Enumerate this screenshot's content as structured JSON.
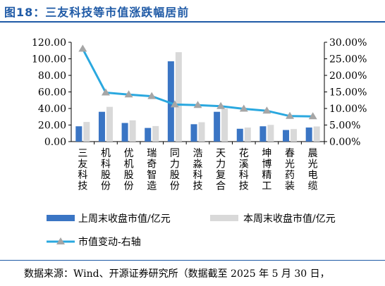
{
  "title": "图18：三友科技等市值涨跌幅居前",
  "source": "数据来源：Wind、开源证券研究所（数据截至 2025 年 5 月 30 日，",
  "colors": {
    "prev": "#3a75c4",
    "curr": "#d9d9d9",
    "line": "#2aa8df",
    "marker": "#a6a6a6",
    "title": "#1f5aa6"
  },
  "chart_data": {
    "type": "bar",
    "categories": [
      "三友科技",
      "机科股份",
      "优机股份",
      "瑞奇智造",
      "同力股份",
      "浩淼科技",
      "天力复合",
      "花溪科技",
      "坤博精工",
      "春光药装",
      "晨光电缆"
    ],
    "series": [
      {
        "name": "上周末收盘市值/亿元",
        "type": "bar",
        "axis": "left",
        "values": [
          18.5,
          36,
          22.5,
          16.5,
          97,
          21,
          36,
          15.5,
          18.5,
          14,
          17
        ]
      },
      {
        "name": "本周末收盘市值/亿元",
        "type": "bar",
        "axis": "left",
        "values": [
          23.7,
          42,
          25.7,
          18.8,
          108,
          23.4,
          40,
          17,
          20.2,
          15.1,
          18.3
        ]
      },
      {
        "name": "市值变动-右轴",
        "type": "line",
        "axis": "right",
        "values": [
          28.0,
          14.8,
          14.2,
          13.7,
          11.2,
          11.0,
          10.7,
          9.9,
          9.3,
          7.7,
          7.6
        ]
      }
    ],
    "y_left": {
      "min": 0,
      "max": 120,
      "ticks": [
        0,
        20,
        40,
        60,
        80,
        100,
        120
      ],
      "tick_labels": [
        "0.00",
        "20.00",
        "40.00",
        "60.00",
        "80.00",
        "100.00",
        "120.00"
      ]
    },
    "y_right": {
      "min": 0,
      "max": 30,
      "ticks": [
        0,
        5,
        10,
        15,
        20,
        25,
        30
      ],
      "tick_labels": [
        "0.00%",
        "5.00%",
        "10.00%",
        "15.00%",
        "20.00%",
        "25.00%",
        "30.00%"
      ]
    },
    "legend": [
      "上周末收盘市值/亿元",
      "本周末收盘市值/亿元",
      "市值变动-右轴"
    ],
    "legend_position": "bottom",
    "grid": false
  }
}
